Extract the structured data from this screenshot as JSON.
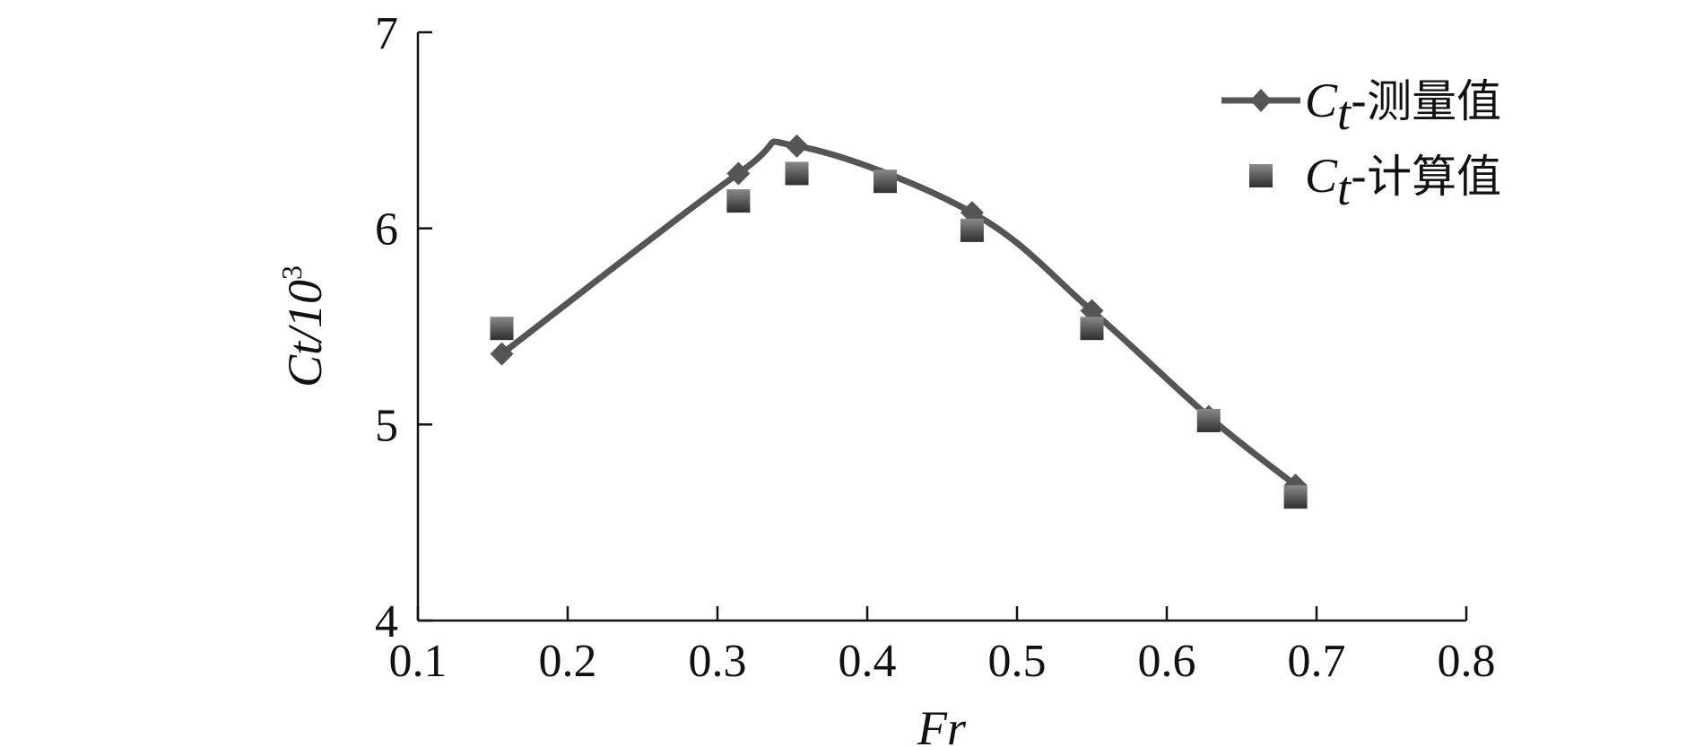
{
  "chart_data": {
    "type": "line",
    "xlabel": "Fr",
    "ylabel": "Ct/10",
    "ylabel_superscript": "3",
    "xlim": [
      0.1,
      0.8
    ],
    "ylim": [
      4,
      7
    ],
    "xticks": [
      "0.1",
      "0.2",
      "0.3",
      "0.4",
      "0.5",
      "0.6",
      "0.7",
      "0.8"
    ],
    "yticks": [
      "4",
      "5",
      "6",
      "7"
    ],
    "grid": false,
    "legend_position": "top-right",
    "series": [
      {
        "name": "Ct-测量值",
        "name_symbol": "C",
        "name_subscript": "t",
        "name_suffix": "-测量值",
        "style": "line-with-diamond-markers",
        "color": "#555555",
        "x": [
          0.156,
          0.314,
          0.353,
          0.47,
          0.55,
          0.628,
          0.686
        ],
        "y": [
          5.36,
          6.28,
          6.42,
          6.08,
          5.58,
          5.04,
          4.69
        ]
      },
      {
        "name": "Ct-计算值",
        "name_symbol": "C",
        "name_subscript": "t",
        "name_suffix": "-计算值",
        "style": "square-markers",
        "color": "#4a4a4a",
        "x": [
          0.156,
          0.314,
          0.353,
          0.412,
          0.47,
          0.55,
          0.628,
          0.686
        ],
        "y": [
          5.49,
          6.14,
          6.28,
          6.24,
          5.99,
          5.49,
          5.02,
          4.63
        ]
      }
    ]
  }
}
